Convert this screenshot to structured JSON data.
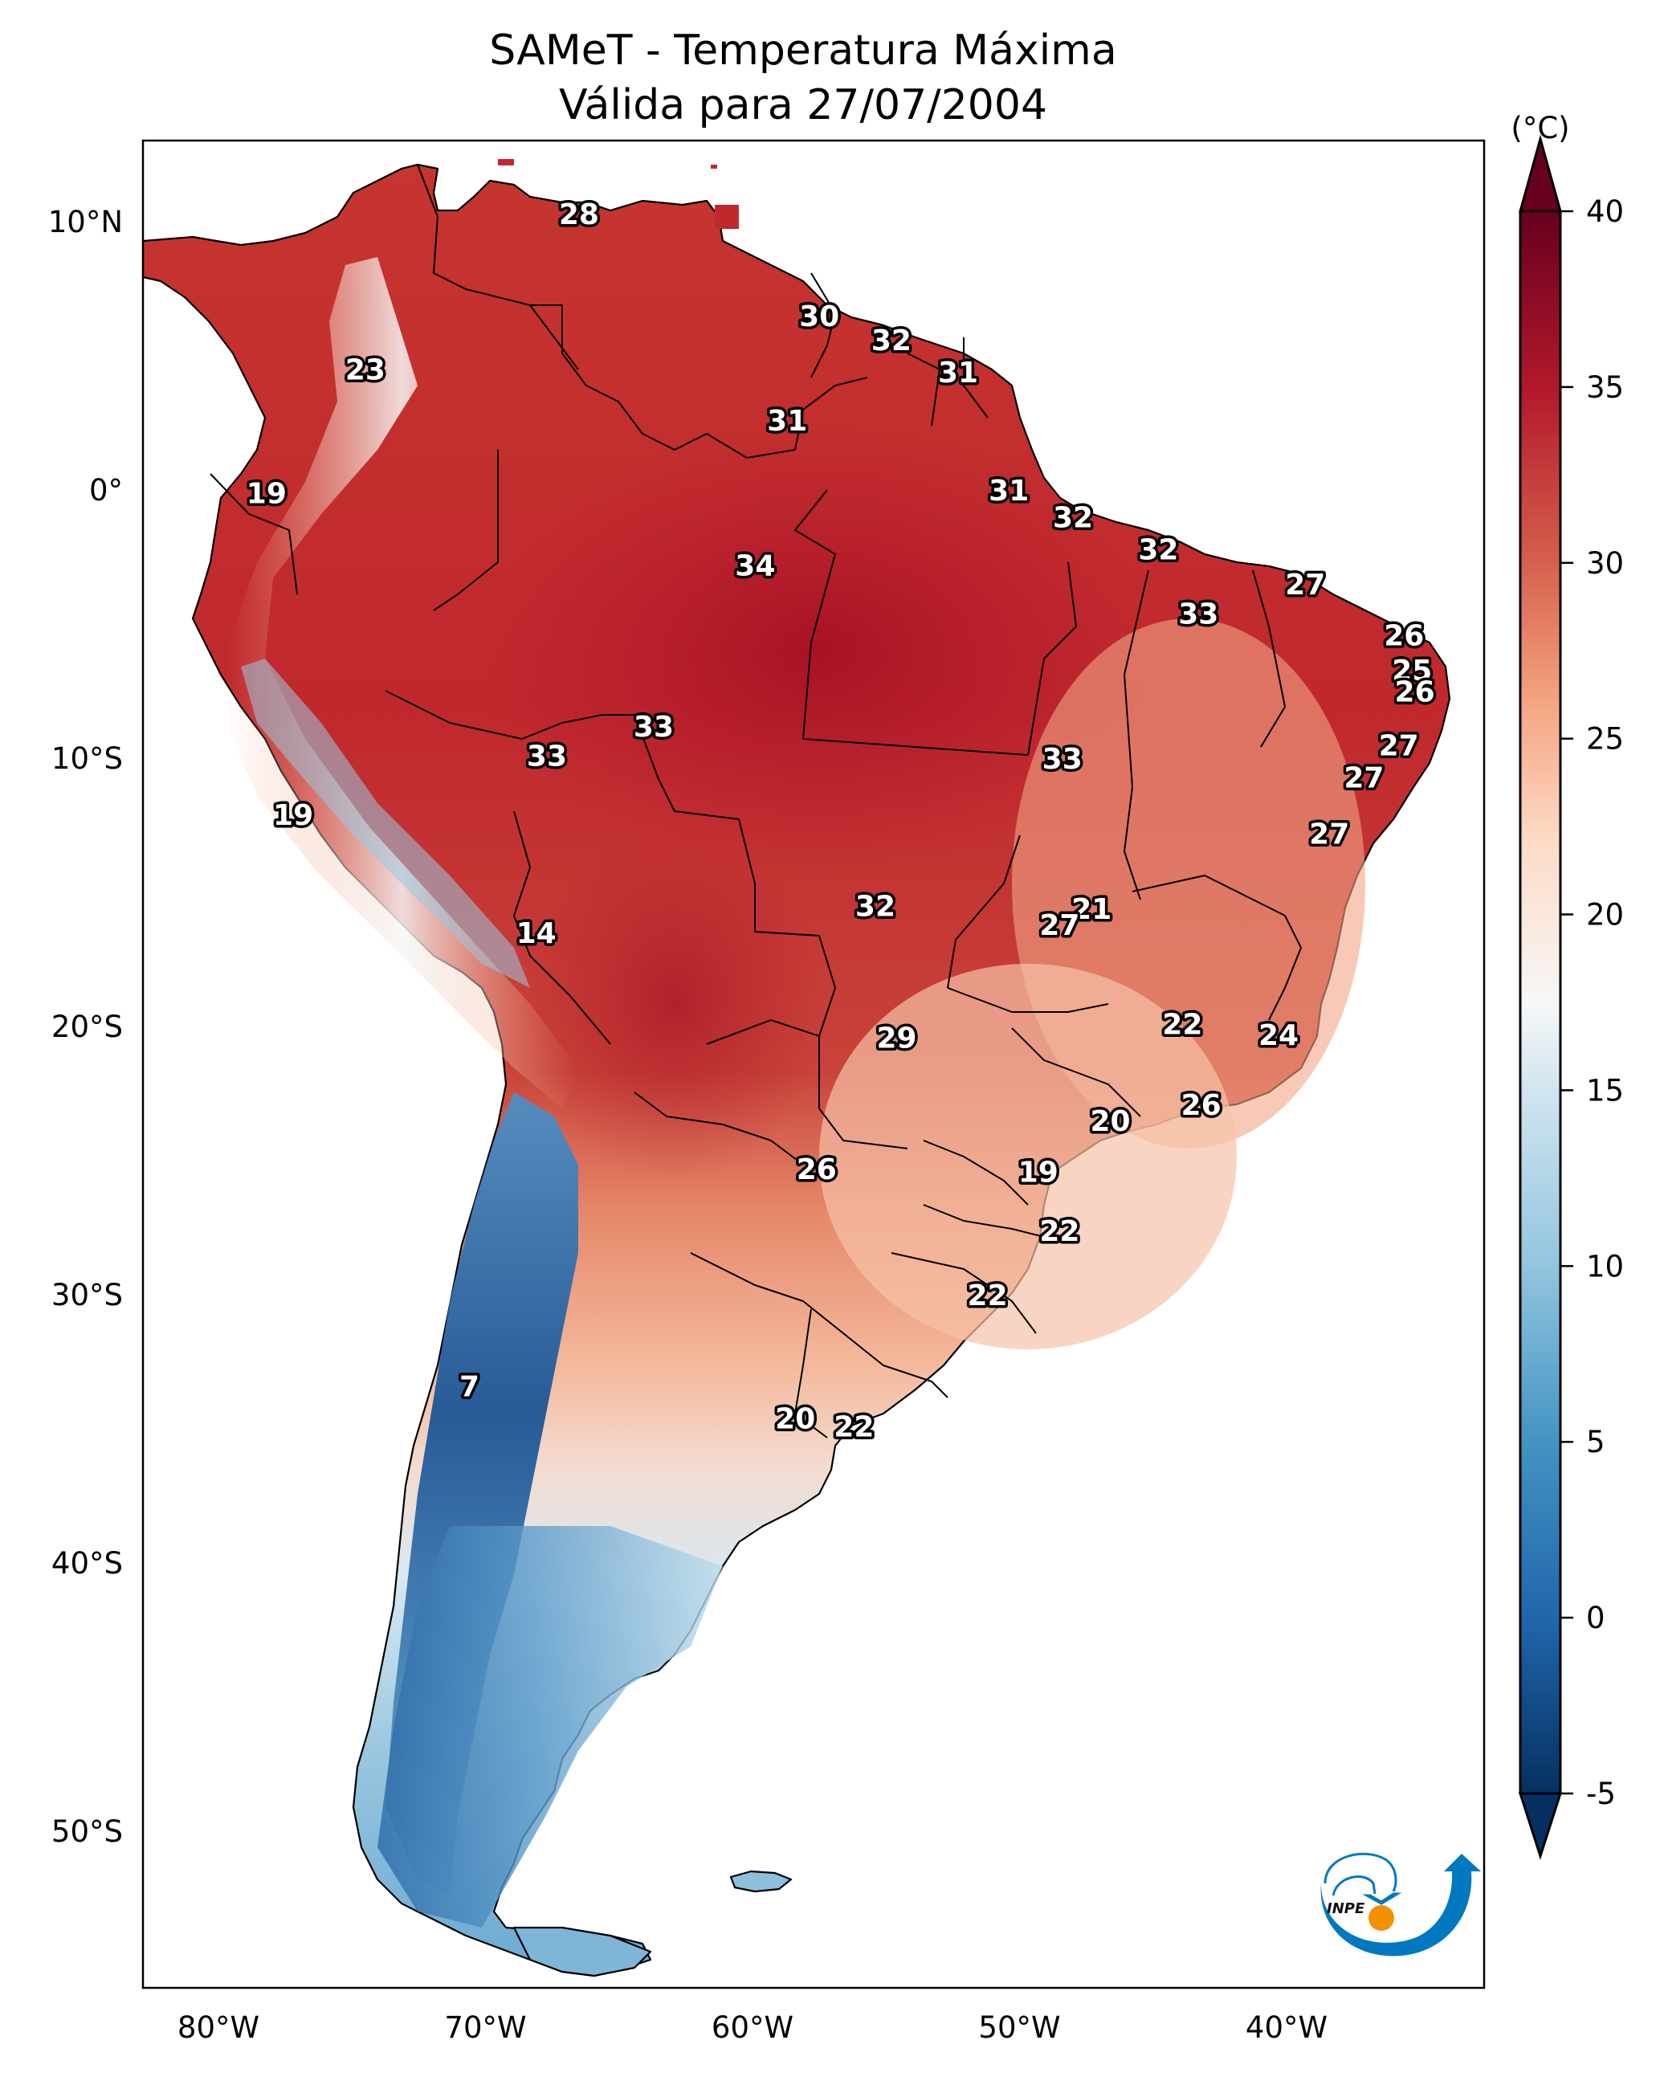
{
  "chart_data": {
    "type": "heatmap",
    "title": "SAMeT - Temperatura Máxima",
    "subtitle": "Válida para 27/07/2004",
    "xlabel": "",
    "ylabel": "",
    "xlim": [
      -83,
      -32
    ],
    "ylim": [
      -56.5,
      13
    ],
    "x_ticks": [
      {
        "value": -80,
        "label": "80°W"
      },
      {
        "value": -70,
        "label": "70°W"
      },
      {
        "value": -60,
        "label": "60°W"
      },
      {
        "value": -50,
        "label": "50°W"
      },
      {
        "value": -40,
        "label": "40°W"
      }
    ],
    "y_ticks": [
      {
        "value": 10,
        "label": "10°N"
      },
      {
        "value": 0,
        "label": "0°"
      },
      {
        "value": -10,
        "label": "10°S"
      },
      {
        "value": -20,
        "label": "20°S"
      },
      {
        "value": -30,
        "label": "30°S"
      },
      {
        "value": -40,
        "label": "40°S"
      },
      {
        "value": -50,
        "label": "50°S"
      }
    ],
    "colorbar": {
      "label": "(°C)",
      "min": -5,
      "max": 40,
      "extend": "both",
      "colormap": "RdBu_r",
      "ticks": [
        40,
        35,
        30,
        25,
        20,
        15,
        10,
        5,
        0,
        -5
      ],
      "tick_labels": [
        "40",
        "35",
        "30",
        "25",
        "20",
        "15",
        "10",
        "5",
        "0",
        "-5"
      ],
      "color_stops": [
        {
          "value": -5,
          "color": "#053061"
        },
        {
          "value": 0,
          "color": "#2166ac"
        },
        {
          "value": 5,
          "color": "#4393c3"
        },
        {
          "value": 10,
          "color": "#92c5de"
        },
        {
          "value": 15,
          "color": "#d1e5f0"
        },
        {
          "value": 17.5,
          "color": "#f7f7f7"
        },
        {
          "value": 22,
          "color": "#fddbc7"
        },
        {
          "value": 26,
          "color": "#f4a582"
        },
        {
          "value": 30,
          "color": "#d6604d"
        },
        {
          "value": 35,
          "color": "#b2182b"
        },
        {
          "value": 40,
          "color": "#67001f"
        }
      ]
    },
    "grid": false,
    "legend": "colorbar-right",
    "annotations": [
      {
        "lon": -66.5,
        "lat": 10.3,
        "value": 28
      },
      {
        "lon": -74.5,
        "lat": 4.5,
        "value": 23
      },
      {
        "lon": -57.5,
        "lat": 6.5,
        "value": 30
      },
      {
        "lon": -54.8,
        "lat": 5.6,
        "value": 32
      },
      {
        "lon": -52.3,
        "lat": 4.4,
        "value": 31
      },
      {
        "lon": -58.7,
        "lat": 2.6,
        "value": 31
      },
      {
        "lon": -78.2,
        "lat": -0.1,
        "value": 19
      },
      {
        "lon": -50.4,
        "lat": 0.0,
        "value": 31
      },
      {
        "lon": -48.0,
        "lat": -1.0,
        "value": 32
      },
      {
        "lon": -44.8,
        "lat": -2.2,
        "value": 32
      },
      {
        "lon": -59.9,
        "lat": -2.8,
        "value": 34
      },
      {
        "lon": -39.3,
        "lat": -3.5,
        "value": 27
      },
      {
        "lon": -43.3,
        "lat": -4.6,
        "value": 33
      },
      {
        "lon": -35.6,
        "lat": -5.4,
        "value": 26
      },
      {
        "lon": -35.3,
        "lat": -6.7,
        "value": 25
      },
      {
        "lon": -35.2,
        "lat": -7.5,
        "value": 26
      },
      {
        "lon": -63.7,
        "lat": -8.8,
        "value": 33
      },
      {
        "lon": -67.7,
        "lat": -9.9,
        "value": 33
      },
      {
        "lon": -48.4,
        "lat": -10.0,
        "value": 33
      },
      {
        "lon": -35.8,
        "lat": -9.5,
        "value": 27
      },
      {
        "lon": -37.1,
        "lat": -10.7,
        "value": 27
      },
      {
        "lon": -77.2,
        "lat": -12.1,
        "value": 19
      },
      {
        "lon": -38.4,
        "lat": -12.8,
        "value": 27
      },
      {
        "lon": -55.4,
        "lat": -15.5,
        "value": 32
      },
      {
        "lon": -47.3,
        "lat": -15.6,
        "value": 21
      },
      {
        "lon": -48.5,
        "lat": -16.2,
        "value": 27
      },
      {
        "lon": -68.1,
        "lat": -16.5,
        "value": 14
      },
      {
        "lon": -43.9,
        "lat": -19.9,
        "value": 22
      },
      {
        "lon": -54.6,
        "lat": -20.4,
        "value": 29
      },
      {
        "lon": -40.3,
        "lat": -20.3,
        "value": 24
      },
      {
        "lon": -43.2,
        "lat": -22.9,
        "value": 26
      },
      {
        "lon": -46.6,
        "lat": -23.5,
        "value": 20
      },
      {
        "lon": -57.6,
        "lat": -25.3,
        "value": 26
      },
      {
        "lon": -49.3,
        "lat": -25.4,
        "value": 19
      },
      {
        "lon": -48.5,
        "lat": -27.6,
        "value": 22
      },
      {
        "lon": -51.2,
        "lat": -30.0,
        "value": 22
      },
      {
        "lon": -70.6,
        "lat": -33.4,
        "value": 7
      },
      {
        "lon": -58.4,
        "lat": -34.6,
        "value": 20
      },
      {
        "lon": -56.2,
        "lat": -34.9,
        "value": 22
      }
    ]
  },
  "logo": {
    "text": "INPE",
    "colors": {
      "blue": "#0079c1",
      "orange": "#f39200"
    }
  }
}
